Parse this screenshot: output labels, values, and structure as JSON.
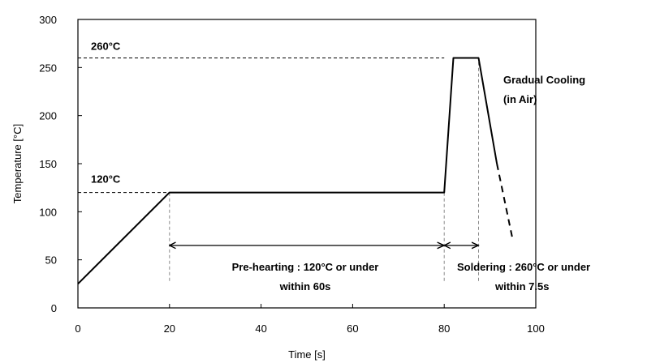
{
  "chart_data": {
    "type": "line",
    "title": "",
    "xlabel": "Time [s]",
    "ylabel": "Temperature [°C]",
    "xlim": [
      0,
      100
    ],
    "ylim": [
      0,
      300
    ],
    "x_ticks": [
      0,
      20,
      40,
      60,
      80,
      100
    ],
    "y_ticks": [
      0,
      50,
      100,
      150,
      200,
      250,
      300
    ],
    "grid": false,
    "series": [
      {
        "style": "solid",
        "points": [
          [
            0,
            25
          ],
          [
            20,
            120
          ],
          [
            80,
            120
          ],
          [
            82,
            260
          ],
          [
            87.5,
            260
          ],
          [
            91.5,
            150
          ]
        ]
      },
      {
        "style": "dashed",
        "points": [
          [
            91.5,
            150
          ],
          [
            95,
            70
          ]
        ]
      }
    ],
    "reference_lines": [
      {
        "y": 260,
        "x_from": 0,
        "x_to": 80,
        "style": "dashed"
      },
      {
        "y": 120,
        "x_from": 0,
        "x_to": 20,
        "style": "dashed"
      }
    ],
    "vertical_guides": [
      {
        "x": 20,
        "y_from": 28,
        "y_to": 120
      },
      {
        "x": 80,
        "y_from": 28,
        "y_to": 120
      },
      {
        "x": 87.5,
        "y_from": 28,
        "y_to": 260
      }
    ],
    "arrows": [
      {
        "x_from": 20,
        "x_to": 80,
        "y": 65
      },
      {
        "x_from": 80,
        "x_to": 87.5,
        "y": 65
      }
    ],
    "annotations": {
      "temp_260": "260°C",
      "temp_120": "120°C",
      "cooling_line1": "Gradual Cooling",
      "cooling_line2": "(in Air)",
      "preheat_line1": "Pre-hearting : 120°C or under",
      "preheat_line2": "within 60s",
      "solder_line1": "Soldering : 260°C or under",
      "solder_line2": "within 7.5s"
    }
  }
}
